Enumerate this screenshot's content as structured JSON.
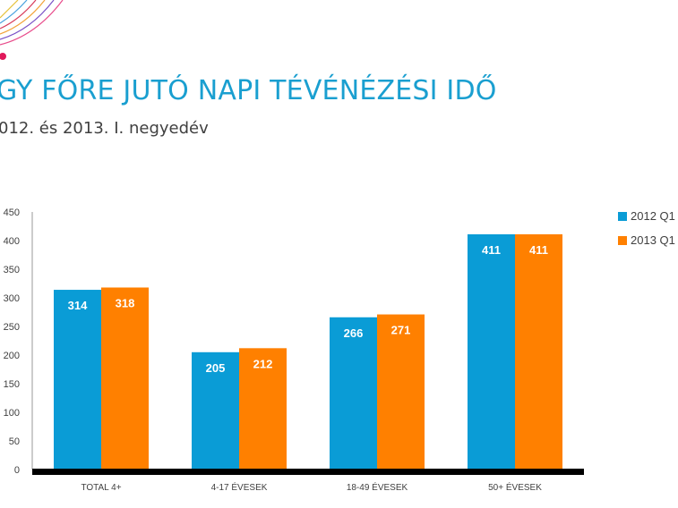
{
  "title": "GY FŐRE JUTÓ NAPI TÉVÉNÉZÉSI IDŐ",
  "subtitle": "012. és 2013. I. negyedév",
  "colors": {
    "series_2012": "#0a9cd6",
    "series_2013": "#ff8000",
    "title": "#1a9fd0",
    "axis": "#000000"
  },
  "chart_data": {
    "type": "bar",
    "title": "GY FŐRE JUTÓ NAPI TÉVÉNÉZÉSI IDŐ",
    "subtitle": "012. és 2013. I. negyedév",
    "categories": [
      "TOTAL 4+",
      "4-17 ÉVESEK",
      "18-49 ÉVESEK",
      "50+ ÉVESEK"
    ],
    "series": [
      {
        "name": "2012 Q1",
        "values": [
          314,
          205,
          266,
          411
        ]
      },
      {
        "name": "2013 Q1",
        "values": [
          318,
          212,
          271,
          411
        ]
      }
    ],
    "yticks": [
      0,
      50,
      100,
      150,
      200,
      250,
      300,
      350,
      400,
      450
    ],
    "ylim": [
      0,
      450
    ],
    "xlabel": "",
    "ylabel": "",
    "grid": false,
    "legend_position": "right"
  }
}
